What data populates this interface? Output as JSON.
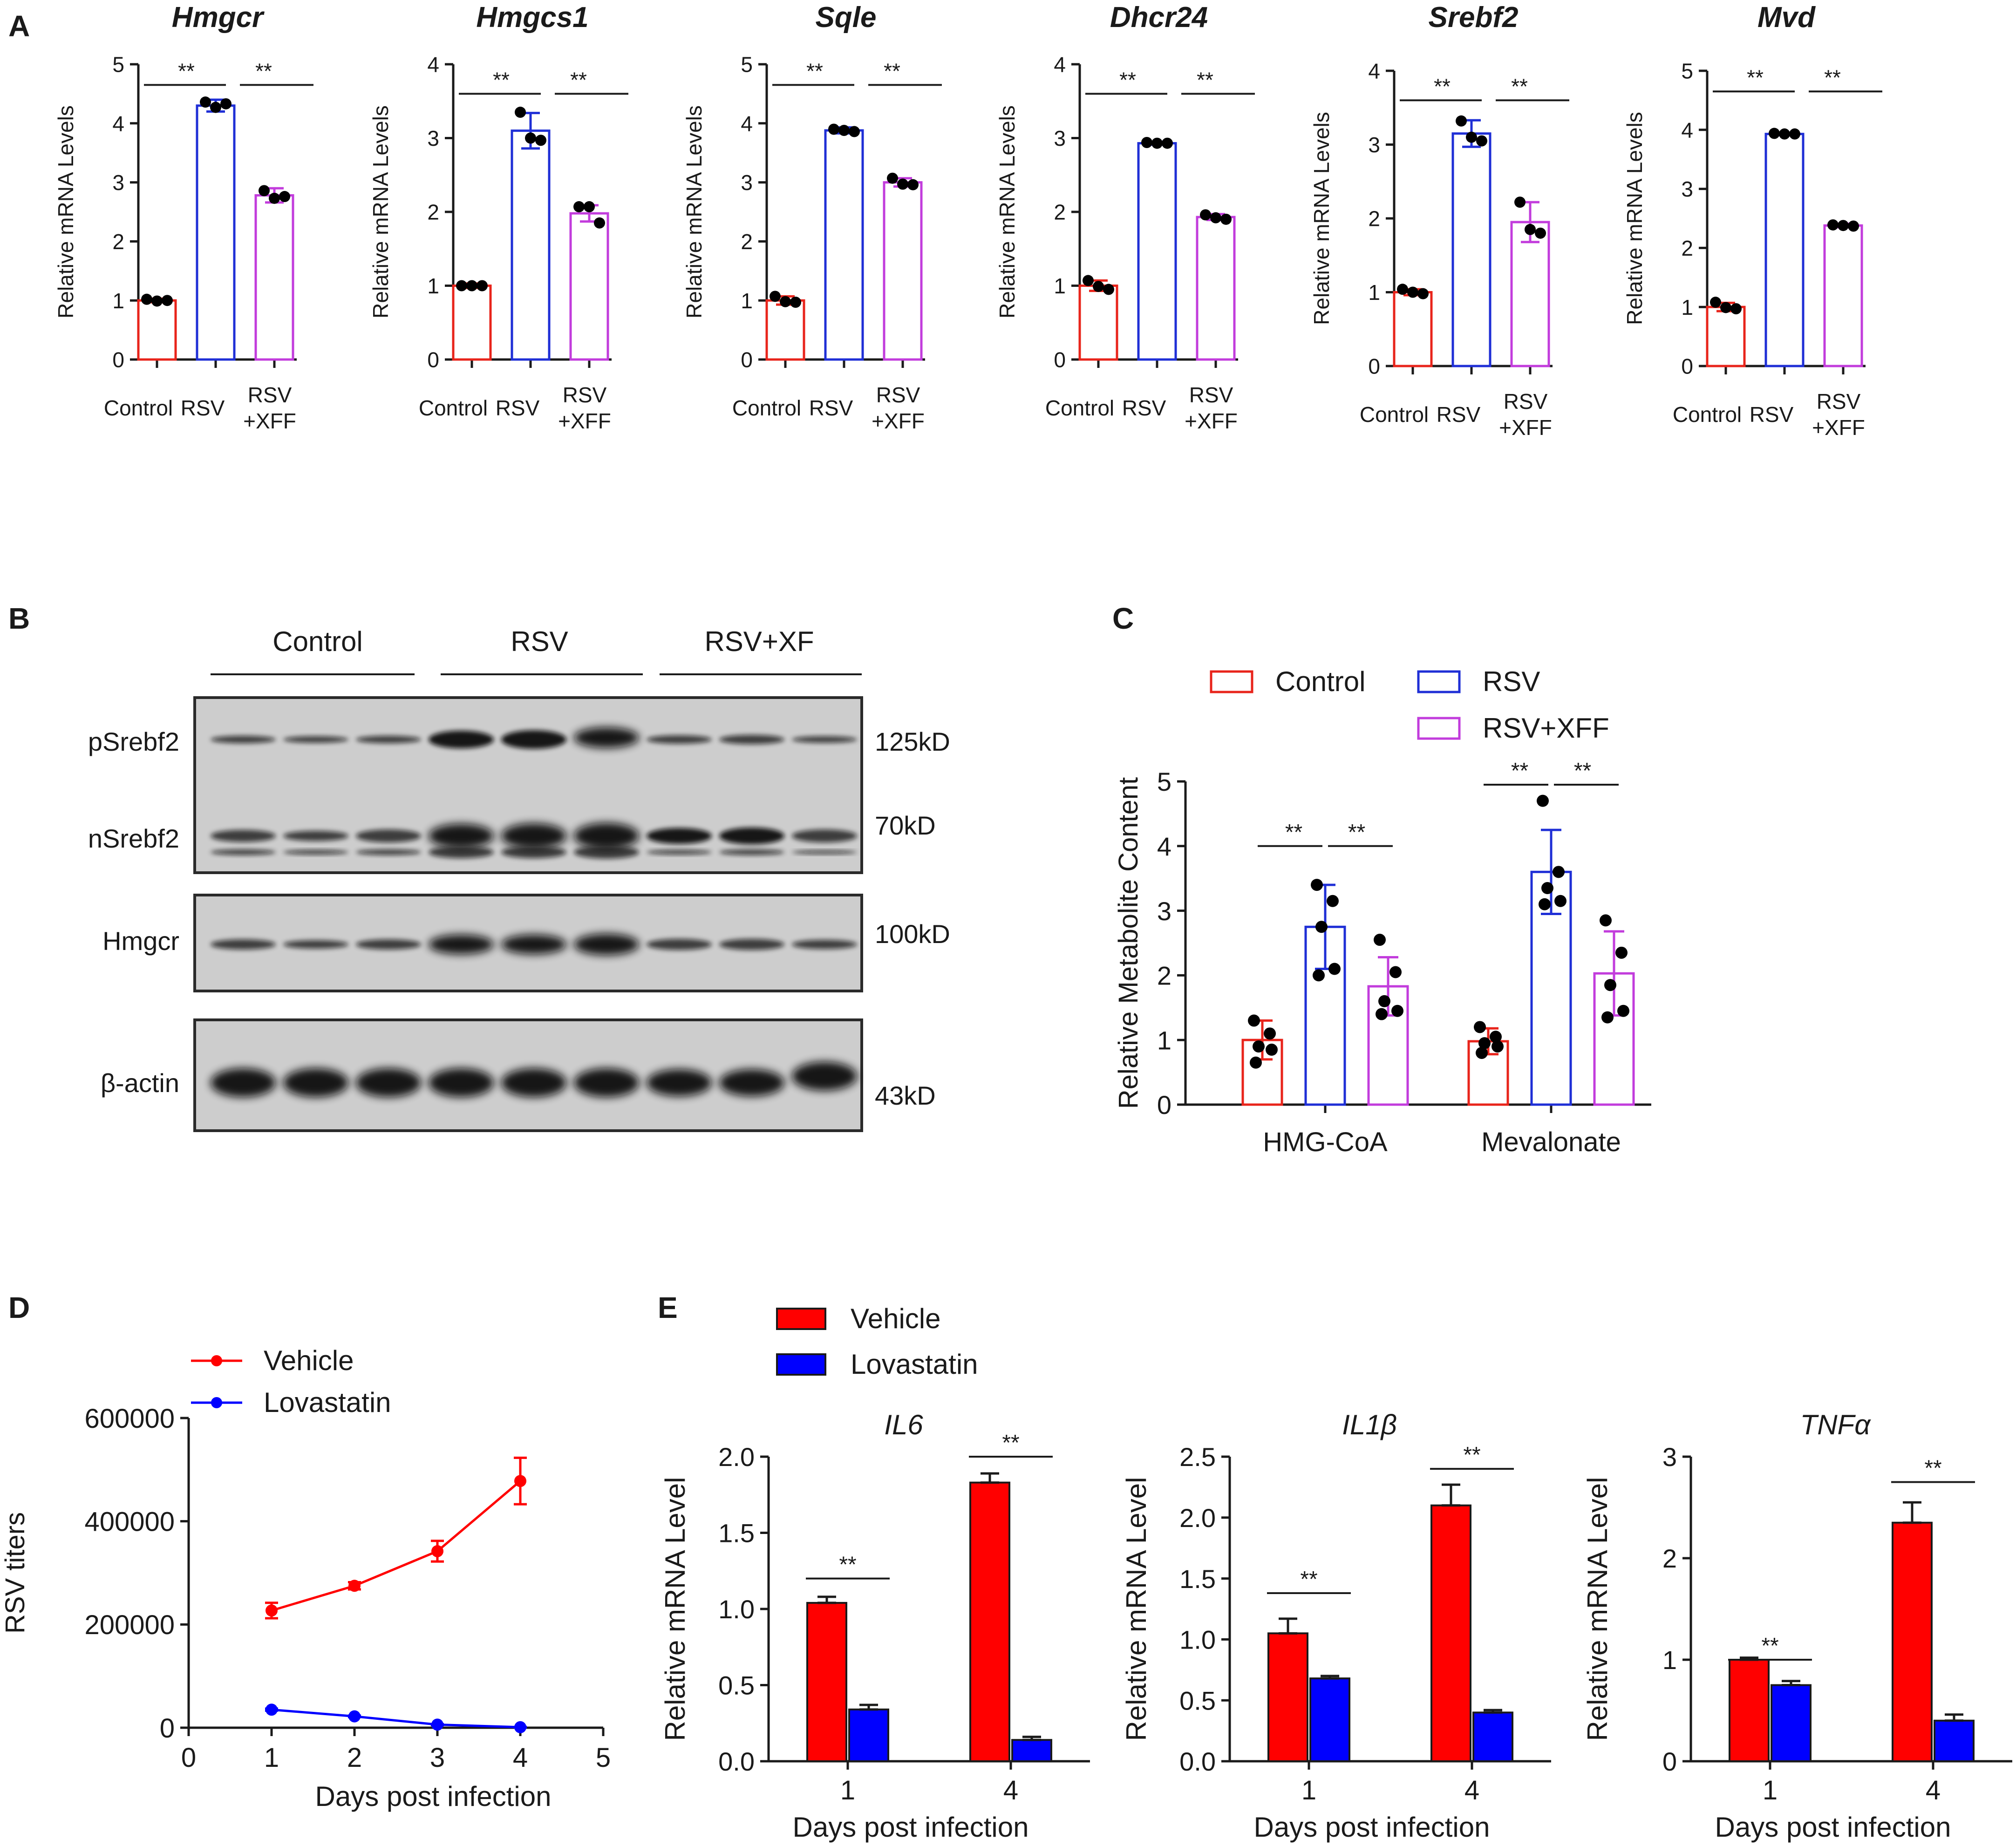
{
  "colors": {
    "control": "#e8241b",
    "rsv": "#1f2fd6",
    "rsvxff": "#c23cdc",
    "vehicle": "#ff0000",
    "lovastatin": "#0000ff",
    "axis": "#1a1a1a",
    "dot": "#000000"
  },
  "panels": {
    "a": "A",
    "b": "B",
    "c": "C",
    "d": "D",
    "e": "E"
  },
  "chart_data": [
    {
      "id": "a1",
      "type": "bar",
      "title": "Hmgcr",
      "ylabel": "Relative mRNA Levels",
      "ylim": [
        0,
        5
      ],
      "yticks": [
        0,
        1,
        2,
        3,
        4,
        5
      ],
      "categories": [
        "Control",
        "RSV",
        "RSV\n+XFF"
      ],
      "values": [
        1.0,
        4.3,
        2.78
      ],
      "err": [
        0.03,
        0.1,
        0.12
      ],
      "points": [
        [
          1.02,
          0.99,
          1.0
        ],
        [
          4.36,
          4.27,
          4.33
        ],
        [
          2.86,
          2.73,
          2.76
        ]
      ],
      "sig": [
        [
          "**",
          0,
          1
        ],
        [
          "**",
          1,
          2
        ]
      ],
      "sig_y": 4.65
    },
    {
      "id": "a2",
      "type": "bar",
      "title": "Hmgcs1",
      "ylabel": "Relative mRNA Levels",
      "ylim": [
        0,
        4
      ],
      "yticks": [
        0,
        1,
        2,
        3,
        4
      ],
      "categories": [
        "Control",
        "RSV",
        "RSV\n+XFF"
      ],
      "values": [
        1.0,
        3.1,
        1.98
      ],
      "err": [
        0.03,
        0.24,
        0.11
      ],
      "points": [
        [
          1.0,
          1.0,
          1.0
        ],
        [
          3.35,
          3.0,
          2.97
        ],
        [
          2.07,
          2.07,
          1.85
        ]
      ],
      "sig": [
        [
          "**",
          0,
          1
        ],
        [
          "**",
          1,
          2
        ]
      ],
      "sig_y": 3.6
    },
    {
      "id": "a3",
      "type": "bar",
      "title": "Sqle",
      "ylabel": "Relative mRNA Levels",
      "ylim": [
        0,
        5
      ],
      "yticks": [
        0,
        1,
        2,
        3,
        4,
        5
      ],
      "categories": [
        "Control",
        "RSV",
        "RSV\n+XFF"
      ],
      "values": [
        1.0,
        3.88,
        3.0
      ],
      "err": [
        0.07,
        0.05,
        0.07
      ],
      "points": [
        [
          1.07,
          0.98,
          0.97
        ],
        [
          3.9,
          3.88,
          3.86
        ],
        [
          3.07,
          2.97,
          2.96
        ]
      ],
      "sig": [
        [
          "**",
          0,
          1
        ],
        [
          "**",
          1,
          2
        ]
      ],
      "sig_y": 4.65
    },
    {
      "id": "a4",
      "type": "bar",
      "title": "Dhcr24",
      "ylabel": "Relative mRNA Levels",
      "ylim": [
        0,
        4
      ],
      "yticks": [
        0,
        1,
        2,
        3,
        4
      ],
      "categories": [
        "Control",
        "RSV",
        "RSV\n+XFF"
      ],
      "values": [
        1.0,
        2.93,
        1.93
      ],
      "err": [
        0.07,
        0.02,
        0.04
      ],
      "points": [
        [
          1.07,
          0.99,
          0.95
        ],
        [
          2.94,
          2.93,
          2.93
        ],
        [
          1.96,
          1.92,
          1.9
        ]
      ],
      "sig": [
        [
          "**",
          0,
          1
        ],
        [
          "**",
          1,
          2
        ]
      ],
      "sig_y": 3.6
    },
    {
      "id": "a5",
      "type": "bar",
      "title": "Srebf2",
      "ylabel": "Relative mRNA Levels",
      "ylim": [
        0,
        4
      ],
      "yticks": [
        0,
        1,
        2,
        3,
        4
      ],
      "categories": [
        "Control",
        "RSV",
        "RSV\n+XFF"
      ],
      "values": [
        1.0,
        3.15,
        1.95
      ],
      "err": [
        0.04,
        0.18,
        0.27
      ],
      "points": [
        [
          1.04,
          1.0,
          0.98
        ],
        [
          3.32,
          3.1,
          3.05
        ],
        [
          2.22,
          1.85,
          1.8
        ]
      ],
      "sig": [
        [
          "**",
          0,
          1
        ],
        [
          "**",
          1,
          2
        ]
      ],
      "sig_y": 3.6
    },
    {
      "id": "a6",
      "type": "bar",
      "title": "Mvd",
      "ylabel": "Relative mRNA Levels",
      "ylim": [
        0,
        5
      ],
      "yticks": [
        0,
        1,
        2,
        3,
        4,
        5
      ],
      "categories": [
        "Control",
        "RSV",
        "RSV\n+XFF"
      ],
      "values": [
        1.0,
        3.93,
        2.38
      ],
      "err": [
        0.07,
        0.02,
        0.03
      ],
      "points": [
        [
          1.08,
          0.99,
          0.97
        ],
        [
          3.94,
          3.93,
          3.93
        ],
        [
          2.39,
          2.38,
          2.37
        ]
      ],
      "sig": [
        [
          "**",
          0,
          1
        ],
        [
          "**",
          1,
          2
        ]
      ],
      "sig_y": 4.65
    },
    {
      "id": "c",
      "type": "bar",
      "ylabel": "Relative Metabolite Content",
      "ylim": [
        0,
        5
      ],
      "yticks": [
        0,
        1,
        2,
        3,
        4,
        5
      ],
      "categories": [
        "HMG-CoA",
        "Mevalonate"
      ],
      "legend": [
        "Control",
        "RSV",
        "RSV+XFF"
      ],
      "series": [
        {
          "name": "Control",
          "values": [
            1.0,
            0.98
          ],
          "err": [
            0.3,
            0.2
          ],
          "points": [
            [
              1.3,
              1.1,
              0.9,
              0.85,
              0.65
            ],
            [
              1.2,
              1.05,
              0.95,
              0.9,
              0.8
            ]
          ]
        },
        {
          "name": "RSV",
          "values": [
            2.75,
            3.6
          ],
          "err": [
            0.65,
            0.65
          ],
          "points": [
            [
              3.4,
              3.15,
              2.75,
              2.1,
              2.0
            ],
            [
              4.7,
              3.6,
              3.35,
              3.15,
              3.1
            ]
          ]
        },
        {
          "name": "RSV+XFF",
          "values": [
            1.83,
            2.03
          ],
          "err": [
            0.45,
            0.65
          ],
          "points": [
            [
              2.55,
              2.05,
              1.6,
              1.45,
              1.4
            ],
            [
              2.85,
              2.35,
              1.85,
              1.45,
              1.35
            ]
          ]
        }
      ],
      "sig_y": [
        4.0,
        4.95
      ]
    },
    {
      "id": "d",
      "type": "line",
      "xlabel": "Days post infection",
      "ylabel": "RSV titers",
      "xlim": [
        0,
        5
      ],
      "xticks": [
        0,
        1,
        2,
        3,
        4,
        5
      ],
      "ylim": [
        0,
        600000
      ],
      "yticks": [
        0,
        200000,
        400000,
        600000
      ],
      "x": [
        1,
        2,
        3,
        4
      ],
      "series": [
        {
          "name": "Vehicle",
          "values": [
            227000,
            275000,
            342000,
            478000
          ],
          "err": [
            15000,
            7000,
            20000,
            45000
          ]
        },
        {
          "name": "Lovastatin",
          "values": [
            35000,
            22000,
            6000,
            1000
          ],
          "err": [
            2000,
            1500,
            1000,
            500
          ]
        }
      ]
    },
    {
      "id": "e1",
      "type": "bar",
      "title": "IL6",
      "xlabel": "Days post infection",
      "ylabel": "Relative mRNA Level",
      "ylim": [
        0,
        2.0
      ],
      "yticks": [
        "0.0",
        "0.5",
        "1.0",
        "1.5",
        "2.0"
      ],
      "categories": [
        "1",
        "4"
      ],
      "series": [
        {
          "name": "Vehicle",
          "values": [
            1.04,
            1.83
          ],
          "err": [
            0.04,
            0.06
          ]
        },
        {
          "name": "Lovastatin",
          "values": [
            0.34,
            0.14
          ],
          "err": [
            0.03,
            0.02
          ]
        }
      ],
      "sig": [
        "**",
        "**"
      ],
      "sig_y": [
        1.2,
        2.0
      ]
    },
    {
      "id": "e2",
      "type": "bar",
      "title": "IL1β",
      "xlabel": "Days post infection",
      "ylabel": "Relative mRNA Level",
      "ylim": [
        0,
        2.5
      ],
      "yticks": [
        "0.0",
        "0.5",
        "1.0",
        "1.5",
        "2.0",
        "2.5"
      ],
      "categories": [
        "1",
        "4"
      ],
      "series": [
        {
          "name": "Vehicle",
          "values": [
            1.05,
            2.1
          ],
          "err": [
            0.12,
            0.17
          ]
        },
        {
          "name": "Lovastatin",
          "values": [
            0.68,
            0.4
          ],
          "err": [
            0.02,
            0.02
          ]
        }
      ],
      "sig": [
        "**",
        "**"
      ],
      "sig_y": [
        1.38,
        2.4
      ]
    },
    {
      "id": "e3",
      "type": "bar",
      "title": "TNFα",
      "xlabel": "Days post infection",
      "ylabel": "Relative mRNA Level",
      "ylim": [
        0,
        3
      ],
      "yticks": [
        "0",
        "1",
        "2",
        "3"
      ],
      "categories": [
        "1",
        "4"
      ],
      "series": [
        {
          "name": "Vehicle",
          "values": [
            1.0,
            2.35
          ],
          "err": [
            0.02,
            0.2
          ]
        },
        {
          "name": "Lovastatin",
          "values": [
            0.75,
            0.4
          ],
          "err": [
            0.04,
            0.06
          ]
        }
      ],
      "sig": [
        "**",
        "**"
      ],
      "sig_y": [
        1.0,
        2.75
      ]
    }
  ],
  "blot": {
    "groups": [
      "Control",
      "RSV",
      "RSV+XF"
    ],
    "rows": [
      {
        "label": "pSrebf2",
        "marker": "125kD"
      },
      {
        "label": "nSrebf2",
        "marker": "70kD"
      },
      {
        "label": "Hmgcr",
        "marker": "100kD"
      },
      {
        "label": "β-actin",
        "marker": "43kD"
      }
    ]
  },
  "legends": {
    "d": [
      "Vehicle",
      "Lovastatin"
    ],
    "e": [
      "Vehicle",
      "Lovastatin"
    ]
  }
}
